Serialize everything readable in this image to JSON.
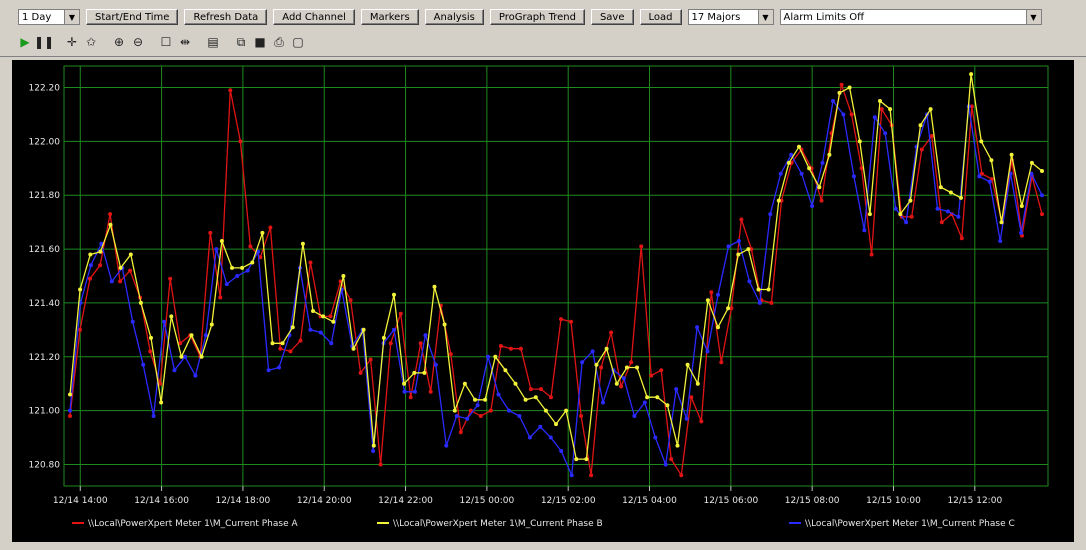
{
  "toolbar": {
    "range_select": "1 Day",
    "start_end_time": "Start/End Time",
    "refresh_data": "Refresh Data",
    "add_channel": "Add Channel",
    "markers": "Markers",
    "analysis": "Analysis",
    "prograph_trend": "ProGraph Trend",
    "save": "Save",
    "load": "Load",
    "major_select": "17 Majors",
    "alarm_select": "Alarm Limits Off"
  },
  "icons": [
    "play-icon",
    "pause-icon",
    "crosshair-icon",
    "star-cursor-icon",
    "zoom-in-icon",
    "zoom-out-icon",
    "select-box-icon",
    "pan-icon",
    "properties-icon",
    "copy-icon",
    "save-disk-icon",
    "print-icon",
    "print-preview-icon"
  ],
  "colors": {
    "background": "#000000",
    "grid": "#1f8a1f",
    "seriesA": "#e01414",
    "seriesB": "#f2f23a",
    "seriesC": "#2a2aff",
    "text": "#e8e8e8"
  },
  "chart_data": {
    "type": "line",
    "ylim": [
      120.72,
      122.28
    ],
    "y_ticks": [
      "120.80",
      "121.00",
      "121.20",
      "121.40",
      "121.60",
      "121.80",
      "122.00",
      "122.20"
    ],
    "x_ticks": [
      "12/14 14:00",
      "12/14 16:00",
      "12/14 18:00",
      "12/14 20:00",
      "12/14 22:00",
      "12/15 00:00",
      "12/15 02:00",
      "12/15 04:00",
      "12/15 06:00",
      "12/15 08:00",
      "12/15 10:00",
      "12/15 12:00"
    ],
    "x_start_hour": 13.6,
    "x_end_hour": 37.8,
    "grid": true,
    "legend_position": "bottom",
    "series": [
      {
        "name": "\\\\Local\\PowerXpert Meter 1\\M_Current Phase A",
        "values": [
          120.98,
          121.3,
          121.49,
          121.54,
          121.73,
          121.48,
          121.52,
          121.42,
          121.22,
          121.1,
          121.49,
          121.25,
          121.28,
          121.2,
          121.66,
          121.42,
          122.19,
          122.0,
          121.61,
          121.57,
          121.68,
          121.23,
          121.22,
          121.26,
          121.55,
          121.35,
          121.35,
          121.48,
          121.41,
          121.14,
          121.19,
          120.8,
          121.25,
          121.36,
          121.05,
          121.25,
          121.07,
          121.39,
          121.21,
          120.92,
          121.0,
          120.98,
          121.0,
          121.24,
          121.23,
          121.23,
          121.08,
          121.08,
          121.05,
          121.34,
          121.33,
          120.98,
          120.76,
          121.16,
          121.29,
          121.09,
          121.18,
          121.61,
          121.13,
          121.15,
          120.82,
          120.76,
          121.05,
          120.96,
          121.44,
          121.18,
          121.38,
          121.71,
          121.6,
          121.41,
          121.4,
          121.78,
          121.92,
          121.97,
          121.9,
          121.78,
          122.03,
          122.21,
          122.1,
          121.9,
          121.58,
          122.12,
          122.06,
          121.72,
          121.72,
          121.97,
          122.02,
          121.7,
          121.73,
          121.64,
          122.13,
          121.88,
          121.86,
          121.7,
          121.93,
          121.65,
          121.87,
          121.73
        ]
      },
      {
        "name": "\\\\Local\\PowerXpert Meter 1\\M_Current Phase B",
        "values": [
          121.06,
          121.45,
          121.58,
          121.59,
          121.69,
          121.53,
          121.58,
          121.4,
          121.27,
          121.03,
          121.35,
          121.2,
          121.28,
          121.2,
          121.32,
          121.63,
          121.53,
          121.53,
          121.55,
          121.66,
          121.25,
          121.25,
          121.31,
          121.62,
          121.37,
          121.35,
          121.33,
          121.5,
          121.23,
          121.3,
          120.87,
          121.27,
          121.43,
          121.1,
          121.14,
          121.14,
          121.46,
          121.32,
          121.0,
          121.1,
          121.04,
          121.04,
          121.2,
          121.15,
          121.1,
          121.04,
          121.05,
          121.0,
          120.95,
          121.0,
          120.82,
          120.82,
          121.17,
          121.23,
          121.1,
          121.16,
          121.16,
          121.05,
          121.05,
          121.02,
          120.87,
          121.17,
          121.1,
          121.41,
          121.31,
          121.38,
          121.58,
          121.6,
          121.45,
          121.45,
          121.78,
          121.92,
          121.98,
          121.9,
          121.83,
          121.95,
          122.18,
          122.2,
          122.0,
          121.73,
          122.15,
          122.12,
          121.73,
          121.78,
          122.06,
          122.12,
          121.83,
          121.81,
          121.79,
          122.25,
          122.0,
          121.93,
          121.7,
          121.95,
          121.76,
          121.92,
          121.89
        ]
      },
      {
        "name": "\\\\Local\\PowerXpert Meter 1\\M_Current Phase C",
        "values": [
          121.0,
          121.4,
          121.54,
          121.62,
          121.48,
          121.53,
          121.33,
          121.17,
          120.98,
          121.33,
          121.15,
          121.2,
          121.13,
          121.28,
          121.6,
          121.47,
          121.5,
          121.52,
          121.59,
          121.15,
          121.16,
          121.28,
          121.53,
          121.3,
          121.29,
          121.25,
          121.45,
          121.24,
          121.3,
          120.85,
          121.25,
          121.3,
          121.07,
          121.07,
          121.28,
          121.17,
          120.87,
          120.98,
          120.97,
          121.02,
          121.2,
          121.06,
          121.0,
          120.98,
          120.9,
          120.94,
          120.9,
          120.85,
          120.76,
          121.18,
          121.22,
          121.03,
          121.15,
          121.12,
          120.98,
          121.03,
          120.9,
          120.8,
          121.08,
          120.97,
          121.31,
          121.22,
          121.43,
          121.61,
          121.63,
          121.48,
          121.4,
          121.73,
          121.88,
          121.95,
          121.88,
          121.76,
          121.92,
          122.15,
          122.1,
          121.87,
          121.67,
          122.09,
          122.03,
          121.75,
          121.7,
          121.98,
          122.1,
          121.75,
          121.74,
          121.72,
          122.13,
          121.87,
          121.85,
          121.63,
          121.88,
          121.66,
          121.88,
          121.8
        ]
      }
    ]
  }
}
